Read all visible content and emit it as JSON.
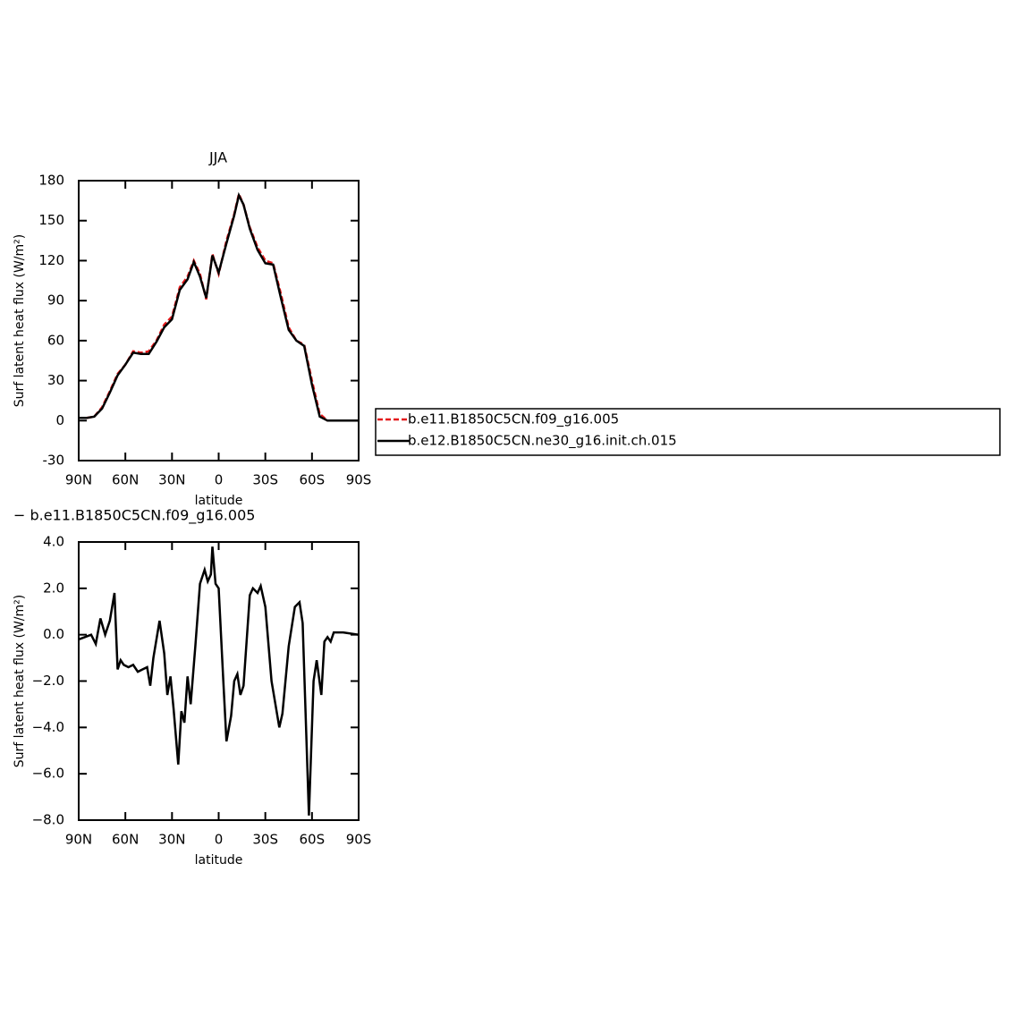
{
  "chart_data": [
    {
      "type": "line",
      "title": "JJA",
      "xlabel": "latitude",
      "ylabel": "Surf latent heat flux (W/m²)",
      "x": [
        90,
        85,
        80,
        75,
        70,
        65,
        60,
        55,
        50,
        45,
        40,
        35,
        30,
        25,
        20,
        16,
        12,
        8,
        4,
        0,
        -5,
        -10,
        -13,
        -16,
        -20,
        -25,
        -30,
        -35,
        -40,
        -45,
        -50,
        -55,
        -60,
        -65,
        -70,
        -75,
        -80,
        -85,
        -90
      ],
      "series": [
        {
          "name": "b.e11.B1850C5CN.f09_g16.005",
          "color": "#e41a1c",
          "dashed": true,
          "values": [
            2,
            2,
            3,
            10,
            22,
            35,
            42,
            52,
            51,
            52,
            60,
            72,
            78,
            100,
            108,
            120,
            110,
            91,
            125,
            110,
            135,
            155,
            170,
            162,
            145,
            130,
            120,
            118,
            95,
            70,
            60,
            57,
            30,
            5,
            0,
            0,
            0,
            0,
            0
          ]
        },
        {
          "name": "b.e12.B1850C5CN.ne30_g16.init.ch.015",
          "color": "#000000",
          "dashed": false,
          "values": [
            2,
            2,
            3,
            9,
            21,
            34,
            42,
            51,
            50,
            50,
            59,
            70,
            76,
            98,
            106,
            119,
            108,
            92,
            124,
            111,
            133,
            154,
            169,
            162,
            144,
            128,
            118,
            117,
            92,
            68,
            60,
            56,
            27,
            3,
            0,
            0,
            0,
            0,
            0
          ]
        }
      ],
      "xlim": [
        90,
        -90
      ],
      "xticks": [
        {
          "value": 90,
          "label": "90N"
        },
        {
          "value": 60,
          "label": "60N"
        },
        {
          "value": 30,
          "label": "30N"
        },
        0,
        {
          "value": -30,
          "label": "30S"
        },
        {
          "value": -60,
          "label": "60S"
        },
        {
          "value": -90,
          "label": "90S"
        }
      ],
      "ylim": [
        -30,
        180
      ],
      "yticks": [
        -30,
        0,
        30,
        60,
        90,
        120,
        150,
        180
      ],
      "legend": "right"
    },
    {
      "type": "line",
      "title": "− b.e11.B1850C5CN.f09_g16.005",
      "xlabel": "latitude",
      "ylabel": "Surf latent heat flux (W/m²)",
      "x": [
        90,
        86,
        82,
        79,
        76,
        73,
        70,
        67,
        65,
        63,
        61,
        58,
        55,
        52,
        49,
        46,
        44,
        42,
        38,
        35,
        33,
        31,
        29,
        26,
        24,
        22,
        20,
        18,
        15,
        12,
        9,
        7,
        5,
        4,
        2,
        0,
        -3,
        -5,
        -8,
        -10,
        -12,
        -14,
        -16,
        -20,
        -22,
        -25,
        -27,
        -30,
        -34,
        -39,
        -41,
        -45,
        -49,
        -52,
        -54,
        -58,
        -61,
        -63,
        -66,
        -68,
        -70,
        -72,
        -74,
        -80,
        -90
      ],
      "series": [
        {
          "color": "#000000",
          "dashed": false,
          "values": [
            -0.2,
            -0.1,
            0.0,
            -0.4,
            0.7,
            0.0,
            0.6,
            1.8,
            -1.5,
            -1.1,
            -1.3,
            -1.4,
            -1.3,
            -1.6,
            -1.5,
            -1.4,
            -2.2,
            -1.0,
            0.6,
            -0.8,
            -2.6,
            -1.8,
            -3.2,
            -5.6,
            -3.3,
            -3.8,
            -1.8,
            -3.0,
            -0.5,
            2.2,
            2.8,
            2.3,
            2.6,
            3.8,
            2.2,
            2.0,
            -2.0,
            -4.6,
            -3.5,
            -2.0,
            -1.7,
            -2.6,
            -2.2,
            1.7,
            2.0,
            1.8,
            2.1,
            1.2,
            -2.0,
            -4.0,
            -3.4,
            -0.5,
            1.2,
            1.4,
            0.5,
            -7.8,
            -2.0,
            -1.1,
            -2.6,
            -0.3,
            -0.1,
            -0.3,
            0.1,
            0.1,
            0.0
          ]
        }
      ],
      "xlim": [
        90,
        -90
      ],
      "xticks": [
        {
          "value": 90,
          "label": "90N"
        },
        {
          "value": 60,
          "label": "60N"
        },
        {
          "value": 30,
          "label": "30N"
        },
        0,
        {
          "value": -30,
          "label": "30S"
        },
        {
          "value": -60,
          "label": "60S"
        },
        {
          "value": -90,
          "label": "90S"
        }
      ],
      "ylim": [
        -8,
        4
      ],
      "yticks": [
        {
          "value": -8,
          "label": "−8.0"
        },
        {
          "value": -6,
          "label": "−6.0"
        },
        {
          "value": -4,
          "label": "−4.0"
        },
        {
          "value": -2,
          "label": "−2.0"
        },
        {
          "value": 0,
          "label": "0.0"
        },
        {
          "value": 2,
          "label": "2.0"
        },
        {
          "value": 4,
          "label": "4.0"
        }
      ]
    }
  ]
}
